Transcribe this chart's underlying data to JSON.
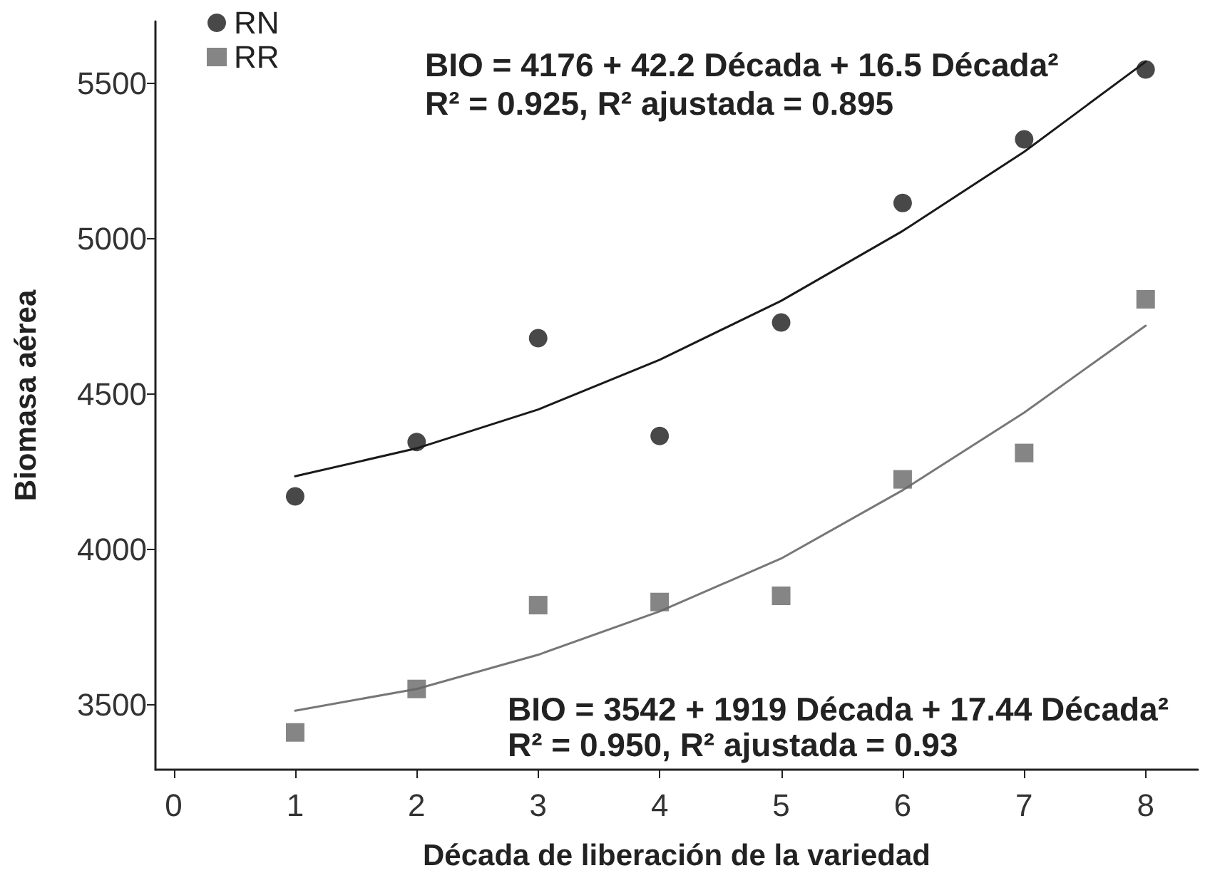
{
  "chart_data": {
    "type": "scatter",
    "xlabel": "Década de liberación de la variedad",
    "ylabel": "Biomasa aérea",
    "xlim": [
      -0.15,
      8.43
    ],
    "xticks": [
      0,
      1,
      2,
      3,
      4,
      5,
      6,
      7,
      8
    ],
    "ylim": [
      3290,
      5700
    ],
    "yticks": [
      3500,
      4000,
      4500,
      5000,
      5500
    ],
    "grid": false,
    "legend": "top left",
    "series": [
      {
        "name": "RN",
        "marker": "circle",
        "color": "#1a1a1a",
        "x": [
          1,
          2,
          3,
          4,
          5,
          6,
          7,
          8
        ],
        "values": [
          4170,
          4345,
          4680,
          4365,
          4730,
          5115,
          5320,
          5545
        ]
      },
      {
        "name": "RR",
        "marker": "square",
        "color": "#666666",
        "x": [
          1,
          2,
          3,
          4,
          5,
          6,
          7,
          8
        ],
        "values": [
          3410,
          3550,
          3820,
          3830,
          3850,
          4225,
          4310,
          4805
        ]
      },
      {
        "type": "line",
        "marker": "none",
        "color": "#1a1a1a",
        "x": [
          1,
          2,
          3,
          4,
          5,
          6,
          7,
          8
        ],
        "values": [
          4235,
          4325,
          4450,
          4610,
          4800,
          5025,
          5280,
          5570
        ]
      },
      {
        "type": "line",
        "marker": "none",
        "color": "#777777",
        "x": [
          1,
          2,
          3,
          4,
          5,
          6,
          7,
          8
        ],
        "values": [
          3480,
          3550,
          3660,
          3800,
          3970,
          4190,
          4440,
          4720
        ]
      }
    ],
    "annotations": [
      "BIO = 4176 + 42.2 Década + 16.5 Década²",
      "R² = 0.925, R² ajustada = 0.895",
      "BIO = 3542 + 1919 Década + 17.44 Década²",
      "R² = 0.950, R² ajustada = 0.93"
    ]
  }
}
